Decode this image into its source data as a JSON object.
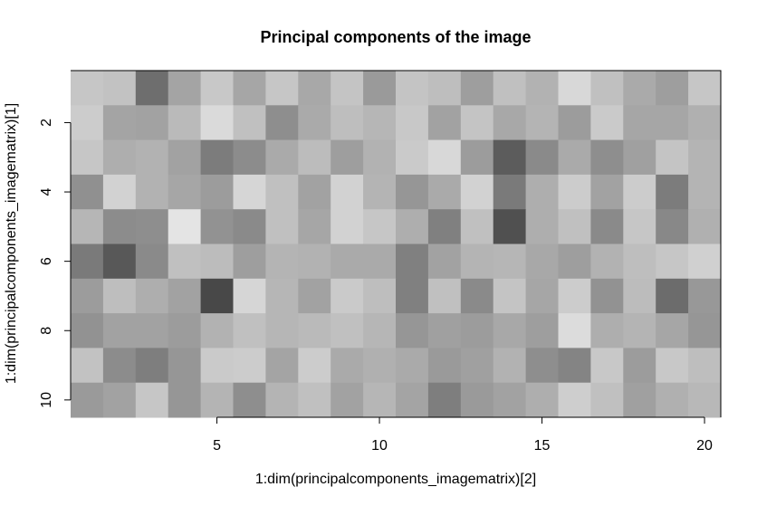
{
  "chart_data": {
    "type": "heatmap",
    "title": "Principal components of the image",
    "xlabel": "1:dim(principalcomponents_imagematrix)[2]",
    "ylabel": "1:dim(principalcomponents_imagematrix)[1]",
    "xlim": [
      0.5,
      20.5
    ],
    "ylim": [
      10.5,
      0.5
    ],
    "x_ticks": [
      5,
      10,
      15,
      20
    ],
    "y_ticks": [
      2,
      4,
      6,
      8,
      10
    ],
    "colormap": "grayscale",
    "rows": 10,
    "cols": 20,
    "cell_colors": [
      [
        "#c6c6c6",
        "#c2c2c2",
        "#6e6e6e",
        "#a4a4a4",
        "#c8c8c8",
        "#a6a6a6",
        "#c6c6c6",
        "#a8a8a8",
        "#c4c4c4",
        "#9a9a9a",
        "#c4c4c4",
        "#bebebe",
        "#9e9e9e",
        "#c0c0c0",
        "#b2b2b2",
        "#d8d8d8",
        "#c0c0c0",
        "#aaaaaa",
        "#9e9e9e",
        "#c6c6c6"
      ],
      [
        "#cccccc",
        "#a4a4a4",
        "#a2a2a2",
        "#bababa",
        "#dadada",
        "#c0c0c0",
        "#8e8e8e",
        "#aaaaaa",
        "#bebebe",
        "#b6b6b6",
        "#c8c8c8",
        "#a2a2a2",
        "#c4c4c4",
        "#a8a8a8",
        "#b4b4b4",
        "#9c9c9c",
        "#cacaca",
        "#a6a6a6",
        "#a6a6a6",
        "#b0b0b0"
      ],
      [
        "#c6c6c6",
        "#aeaeae",
        "#b2b2b2",
        "#a2a2a2",
        "#7c7c7c",
        "#8c8c8c",
        "#aaaaaa",
        "#bcbcbc",
        "#9e9e9e",
        "#b2b2b2",
        "#cacaca",
        "#d8d8d8",
        "#9c9c9c",
        "#5c5c5c",
        "#8a8a8a",
        "#aaaaaa",
        "#8e8e8e",
        "#a0a0a0",
        "#c4c4c4",
        "#b4b4b4"
      ],
      [
        "#909090",
        "#d2d2d2",
        "#b2b2b2",
        "#a6a6a6",
        "#9c9c9c",
        "#d6d6d6",
        "#c0c0c0",
        "#a2a2a2",
        "#d2d2d2",
        "#b4b4b4",
        "#969696",
        "#aaaaaa",
        "#d2d2d2",
        "#7a7a7a",
        "#aeaeae",
        "#cccccc",
        "#a2a2a2",
        "#cccccc",
        "#7c7c7c",
        "#b4b4b4"
      ],
      [
        "#b6b6b6",
        "#8c8c8c",
        "#8e8e8e",
        "#e4e4e4",
        "#929292",
        "#8a8a8a",
        "#c0c0c0",
        "#a6a6a6",
        "#d2d2d2",
        "#c6c6c6",
        "#aeaeae",
        "#808080",
        "#c0c0c0",
        "#505050",
        "#aeaeae",
        "#c0c0c0",
        "#8a8a8a",
        "#c6c6c6",
        "#888888",
        "#b0b0b0"
      ],
      [
        "#7a7a7a",
        "#585858",
        "#8a8a8a",
        "#c0c0c0",
        "#bcbcbc",
        "#9e9e9e",
        "#b4b4b4",
        "#b2b2b2",
        "#aaaaaa",
        "#aaaaaa",
        "#808080",
        "#a2a2a2",
        "#b4b4b4",
        "#b6b6b6",
        "#a8a8a8",
        "#9e9e9e",
        "#b2b2b2",
        "#bebebe",
        "#c6c6c6",
        "#d0d0d0"
      ],
      [
        "#9c9c9c",
        "#bebebe",
        "#aeaeae",
        "#a2a2a2",
        "#484848",
        "#d6d6d6",
        "#b6b6b6",
        "#a2a2a2",
        "#cacaca",
        "#bebebe",
        "#808080",
        "#c0c0c0",
        "#8a8a8a",
        "#c4c4c4",
        "#a6a6a6",
        "#cccccc",
        "#929292",
        "#bcbcbc",
        "#6c6c6c",
        "#989898"
      ],
      [
        "#929292",
        "#a2a2a2",
        "#a2a2a2",
        "#9c9c9c",
        "#b2b2b2",
        "#c0c0c0",
        "#b6b6b6",
        "#bababa",
        "#c0c0c0",
        "#b6b6b6",
        "#969696",
        "#a0a0a0",
        "#9c9c9c",
        "#a8a8a8",
        "#9e9e9e",
        "#dcdcdc",
        "#aeaeae",
        "#b4b4b4",
        "#a6a6a6",
        "#969696"
      ],
      [
        "#c2c2c2",
        "#8c8c8c",
        "#7e7e7e",
        "#969696",
        "#cacaca",
        "#cccccc",
        "#a4a4a4",
        "#cccccc",
        "#aaaaaa",
        "#b0b0b0",
        "#aaaaaa",
        "#9a9a9a",
        "#a0a0a0",
        "#b2b2b2",
        "#8e8e8e",
        "#848484",
        "#c8c8c8",
        "#9c9c9c",
        "#c8c8c8",
        "#bebebe"
      ],
      [
        "#9a9a9a",
        "#a2a2a2",
        "#c6c6c6",
        "#969696",
        "#b4b4b4",
        "#8e8e8e",
        "#b4b4b4",
        "#c0c0c0",
        "#a2a2a2",
        "#b6b6b6",
        "#a4a4a4",
        "#7e7e7e",
        "#9a9a9a",
        "#a2a2a2",
        "#aeaeae",
        "#cecece",
        "#c0c0c0",
        "#a0a0a0",
        "#b0b0b0",
        "#b8b8b8"
      ]
    ]
  }
}
